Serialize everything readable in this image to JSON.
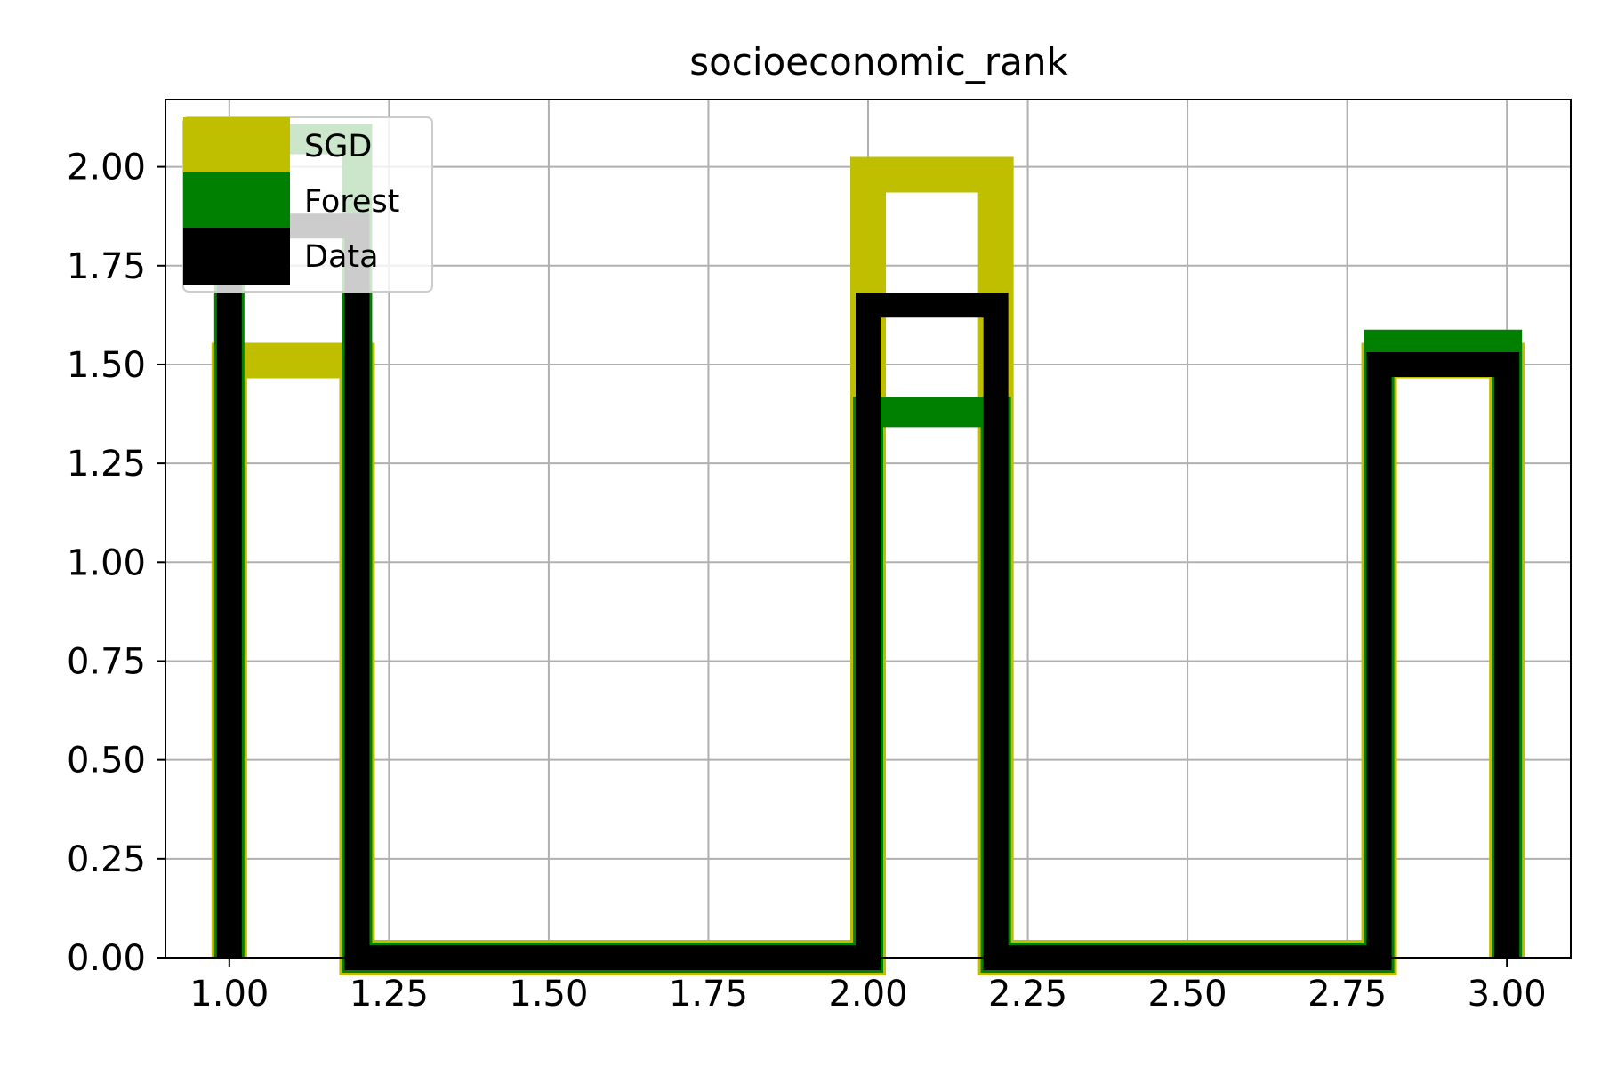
{
  "chart_data": {
    "type": "histogram-step",
    "title": "socioeconomic_rank",
    "xlabel": "",
    "ylabel": "",
    "xlim": [
      0.9,
      3.1
    ],
    "ylim": [
      0,
      2.17
    ],
    "grid": true,
    "legend_position": "top-left",
    "x_ticks": [
      1.0,
      1.25,
      1.5,
      1.75,
      2.0,
      2.25,
      2.5,
      2.75,
      3.0
    ],
    "x_tick_labels": [
      "1.00",
      "1.25",
      "1.50",
      "1.75",
      "2.00",
      "2.25",
      "2.50",
      "2.75",
      "3.00"
    ],
    "y_ticks": [
      0,
      0.25,
      0.5,
      0.75,
      1.0,
      1.25,
      1.5,
      1.75,
      2.0
    ],
    "y_tick_labels": [
      "0.00",
      "0.25",
      "0.50",
      "0.75",
      "1.00",
      "1.25",
      "1.50",
      "1.75",
      "2.00"
    ],
    "bin_edges": [
      1.0,
      1.2,
      2.0,
      2.2,
      2.8,
      3.0
    ],
    "series": [
      {
        "name": "SGD",
        "color": "#bfbf00",
        "values": [
          1.51,
          0,
          1.98,
          0,
          1.51
        ]
      },
      {
        "name": "Forest",
        "color": "#008000",
        "values": [
          2.07,
          0,
          1.38,
          0,
          1.55
        ]
      },
      {
        "name": "Data",
        "color": "#000000",
        "values": [
          1.85,
          0,
          1.65,
          0,
          1.5
        ]
      }
    ]
  }
}
